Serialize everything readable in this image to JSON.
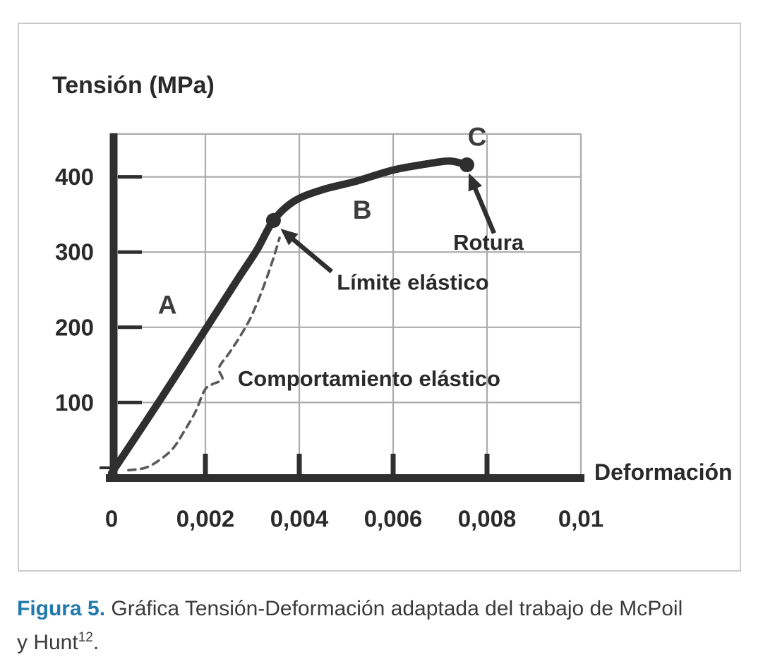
{
  "figure": {
    "caption": {
      "label": "Figura 5.",
      "text_line1": " Gráfica Tensión-Deformación adaptada del trabajo de McPoil",
      "text_line2": "y Hunt",
      "reference": "12",
      "suffix": ".",
      "label_color": "#2279ab"
    }
  },
  "chart_data": {
    "type": "line",
    "title": "",
    "xlabel": "Deformación",
    "ylabel": "Tensión (MPa)",
    "xlim": [
      0,
      0.01
    ],
    "ylim": [
      0,
      457
    ],
    "grid": true,
    "legend": "none",
    "x_ticks": [
      {
        "value": 0,
        "label": "0"
      },
      {
        "value": 0.002,
        "label": "0,002"
      },
      {
        "value": 0.004,
        "label": "0,004"
      },
      {
        "value": 0.006,
        "label": "0,006"
      },
      {
        "value": 0.008,
        "label": "0,008"
      },
      {
        "value": 0.01,
        "label": "0,01"
      }
    ],
    "y_ticks": [
      {
        "value": 100,
        "label": "100"
      },
      {
        "value": 200,
        "label": "200"
      },
      {
        "value": 300,
        "label": "300"
      },
      {
        "value": 400,
        "label": "400"
      }
    ],
    "series": [
      {
        "name": "curva-tension-deformacion",
        "style": "solid",
        "points": [
          [
            0,
            6
          ],
          [
            0.001,
            100
          ],
          [
            0.002,
            197
          ],
          [
            0.0027,
            265
          ],
          [
            0.0031,
            303
          ],
          [
            0.00345,
            342
          ],
          [
            0.0039,
            368
          ],
          [
            0.0045,
            383
          ],
          [
            0.0052,
            394
          ],
          [
            0.006,
            409
          ],
          [
            0.0067,
            417
          ],
          [
            0.0072,
            421
          ],
          [
            0.00757,
            416
          ]
        ]
      },
      {
        "name": "curva-comportamiento-elastico",
        "style": "dashed",
        "points": [
          [
            0.00036,
            10
          ],
          [
            0.00071,
            13
          ],
          [
            0.00101,
            23
          ],
          [
            0.00131,
            39
          ],
          [
            0.00156,
            63
          ],
          [
            0.00179,
            88
          ],
          [
            0.00198,
            116
          ],
          [
            0.00214,
            124
          ],
          [
            0.00236,
            131
          ],
          [
            0.00229,
            146
          ],
          [
            0.00251,
            166
          ],
          [
            0.00274,
            188
          ],
          [
            0.00295,
            211
          ],
          [
            0.00314,
            238
          ],
          [
            0.00332,
            268
          ],
          [
            0.00347,
            296
          ],
          [
            0.00358,
            319
          ]
        ]
      }
    ],
    "key_points": [
      {
        "name": "limite-elastico-point",
        "x": 0.00345,
        "y": 342
      },
      {
        "name": "rotura-point",
        "x": 0.00757,
        "y": 416
      }
    ],
    "region_labels": [
      {
        "name": "region-a",
        "text": "A",
        "x": 0.00119,
        "y": 230
      },
      {
        "name": "region-b",
        "text": "B",
        "x": 0.00534,
        "y": 356
      },
      {
        "name": "region-c",
        "text": "C",
        "x": 0.00779,
        "y": 453
      }
    ],
    "annotations": [
      {
        "name": "limite-elastico",
        "text": "Límite elástico",
        "text_at": [
          0.0048,
          260
        ],
        "arrow_from": [
          0.00469,
          274
        ],
        "arrow_to": [
          0.0036,
          331
        ]
      },
      {
        "name": "rotura",
        "text": "Rotura",
        "text_at": [
          0.00728,
          313
        ],
        "arrow_from": [
          0.00815,
          325
        ],
        "arrow_to": [
          0.00761,
          405
        ]
      },
      {
        "name": "comportamiento-elastico",
        "text": "Comportamiento elástico",
        "text_at": [
          0.00269,
          132
        ]
      }
    ],
    "colors": {
      "curve": "#2f2f2f",
      "dashed": "#5a5a5a",
      "grid": "#acacac",
      "text": "#2a2a2a",
      "region_label": "#3d3d3d",
      "border": "#cbcbcb",
      "caption_accent": "#2279ab"
    }
  }
}
